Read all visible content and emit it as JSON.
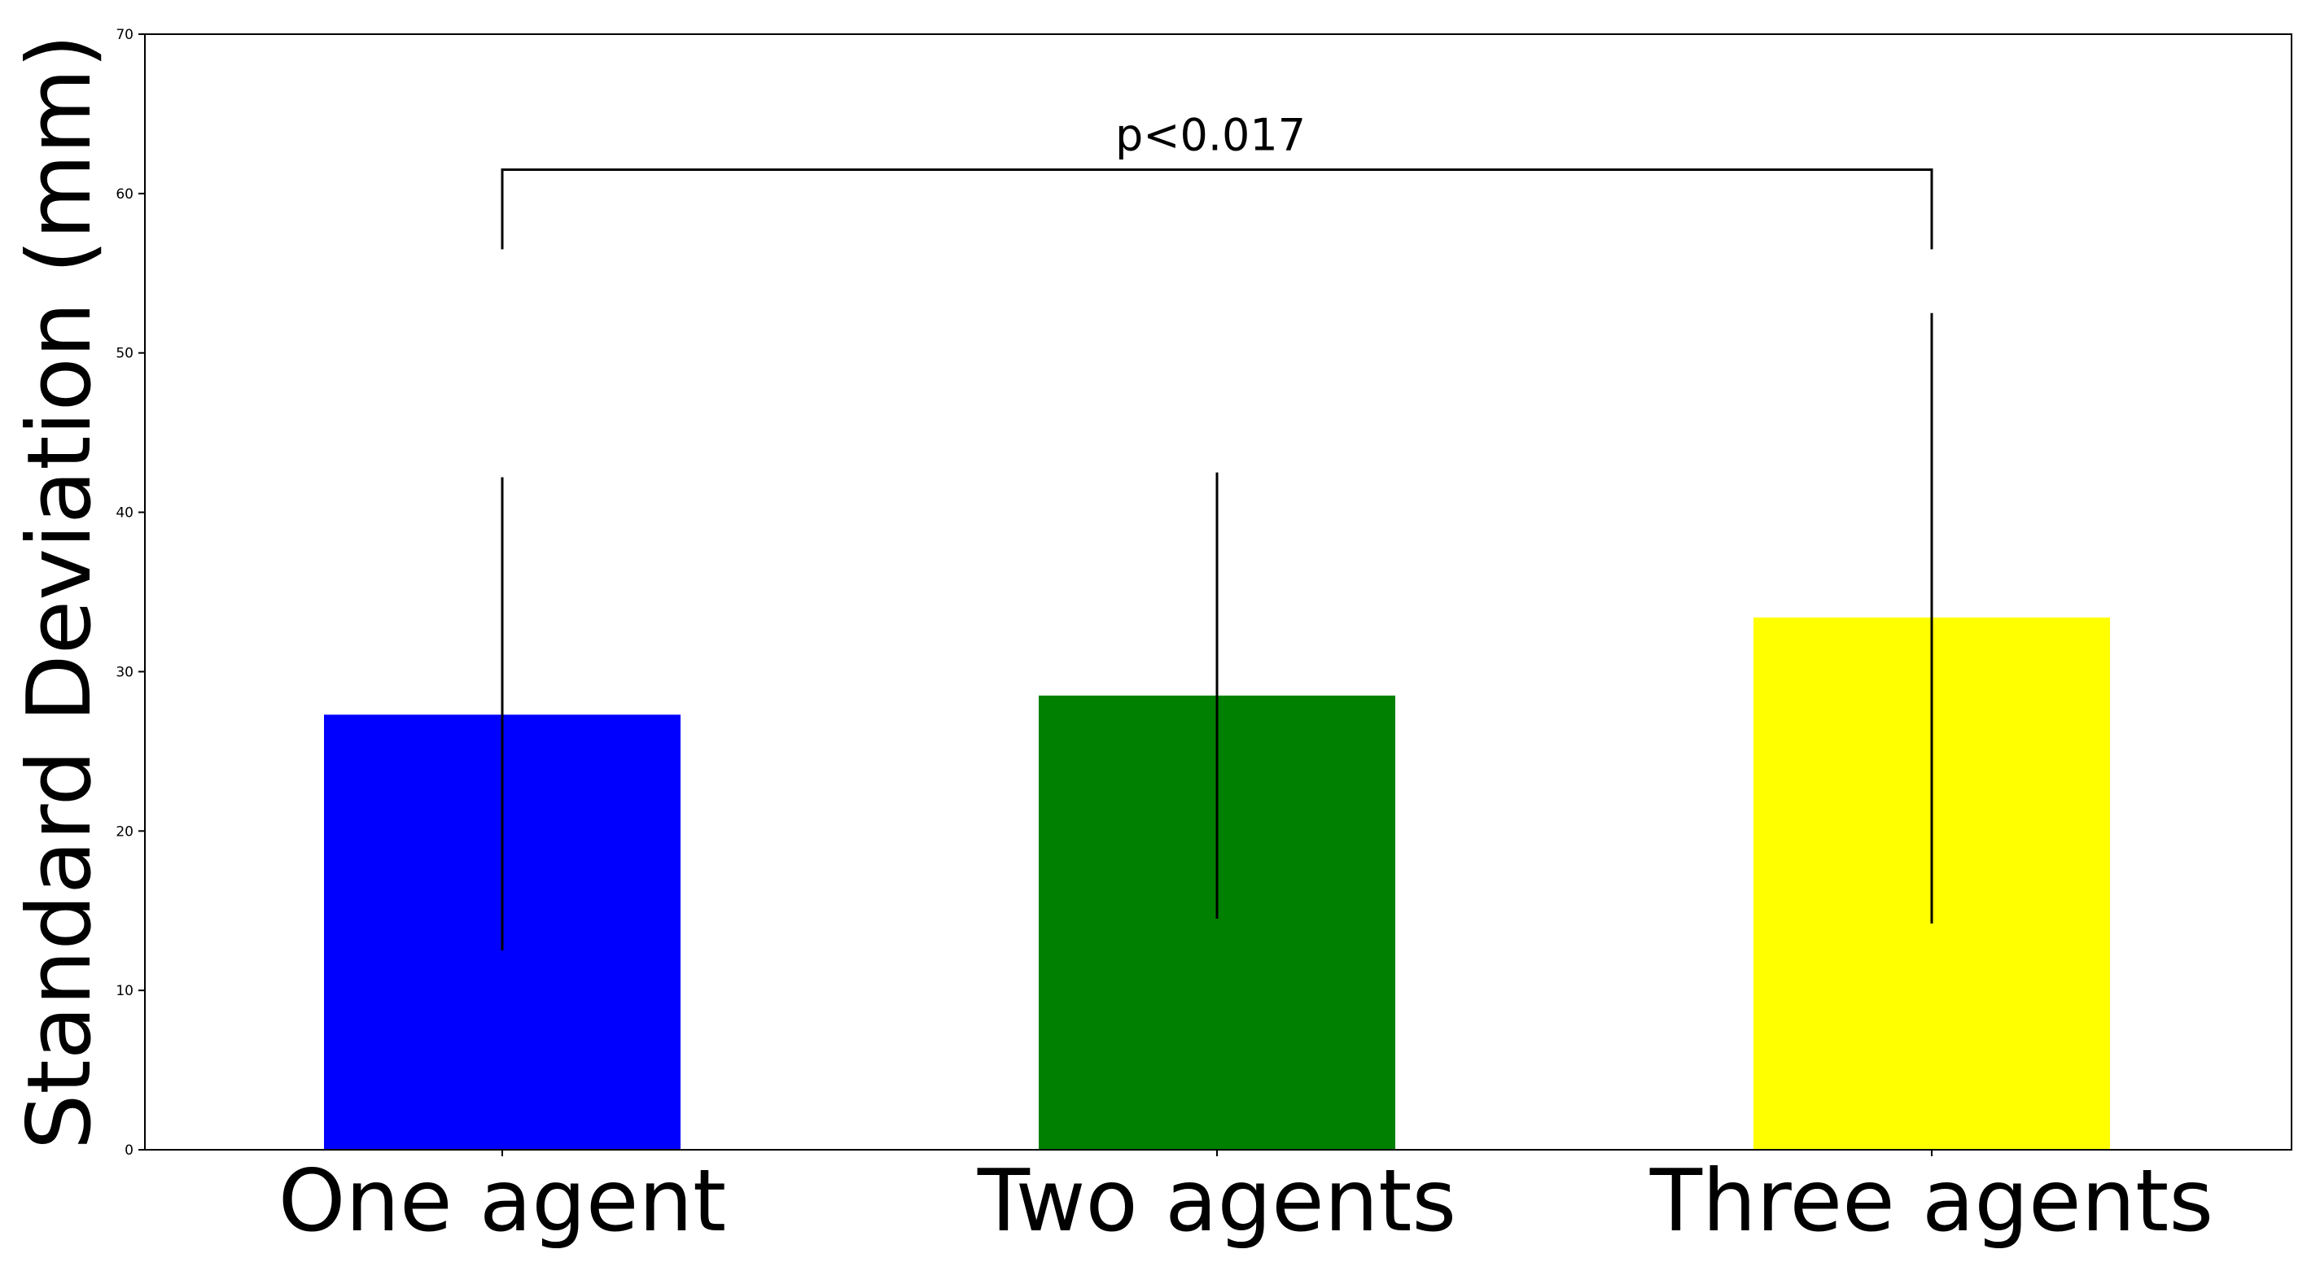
{
  "chart_data": {
    "type": "bar",
    "title": "",
    "xlabel": "",
    "ylabel": "Standard Deviation (mm)",
    "ylim": [
      0,
      70
    ],
    "yticks": [
      0,
      10,
      20,
      30,
      40,
      50,
      60,
      70
    ],
    "grid": false,
    "categories": [
      "One agent",
      "Two agents",
      "Three agents"
    ],
    "values": [
      27.3,
      28.5,
      33.4
    ],
    "error_lower": [
      12.5,
      14.5,
      14.2
    ],
    "error_upper": [
      42.2,
      42.5,
      52.5
    ],
    "colors": [
      "#0000ff",
      "#008000",
      "#ffff00"
    ],
    "annotation": {
      "text": "p<0.017",
      "from_category": "One agent",
      "to_category": "Three agents",
      "y": 61.5,
      "y_ends": 56.5
    }
  }
}
